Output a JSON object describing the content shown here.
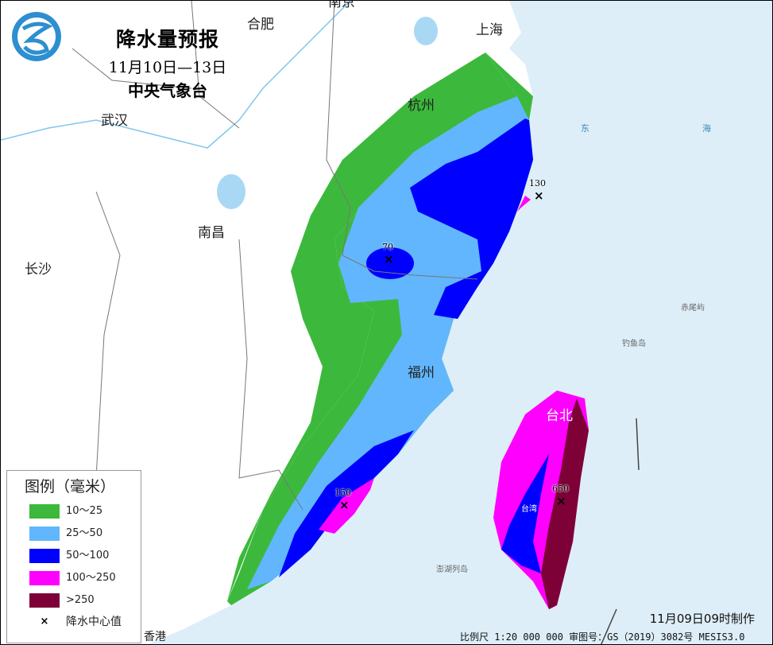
{
  "header": {
    "title": "降水量预报",
    "period": "11月10日—13日",
    "issuer": "中央气象台",
    "logo": "cma-logo"
  },
  "cities": [
    "合肥",
    "上海",
    "杭州",
    "武汉",
    "南昌",
    "长沙",
    "福州",
    "台北",
    "台湾",
    "香港",
    "南京"
  ],
  "sea_labels": {
    "east": "东",
    "sea": "海"
  },
  "islands": [
    "赤尾屿",
    "钓鱼岛",
    "澎湖列岛"
  ],
  "centers": [
    {
      "value": "70"
    },
    {
      "value": "130"
    },
    {
      "value": "150"
    },
    {
      "value": "650"
    }
  ],
  "legend": {
    "title": "图例（毫米）",
    "items": [
      {
        "label": "10～25",
        "color": "#3cb93c"
      },
      {
        "label": "25～50",
        "color": "#62b6fd"
      },
      {
        "label": "50～100",
        "color": "#0000fe"
      },
      {
        "label": "100～250",
        "color": "#fe00fe"
      },
      {
        "label": ">250",
        "color": "#7d0037"
      }
    ],
    "center_label": "降水中心值"
  },
  "footer": {
    "made": "11月09日09时制作",
    "scale": "比例尺 1:20 000 000  审图号：GS（2019）3082号 MESIS3.0"
  }
}
